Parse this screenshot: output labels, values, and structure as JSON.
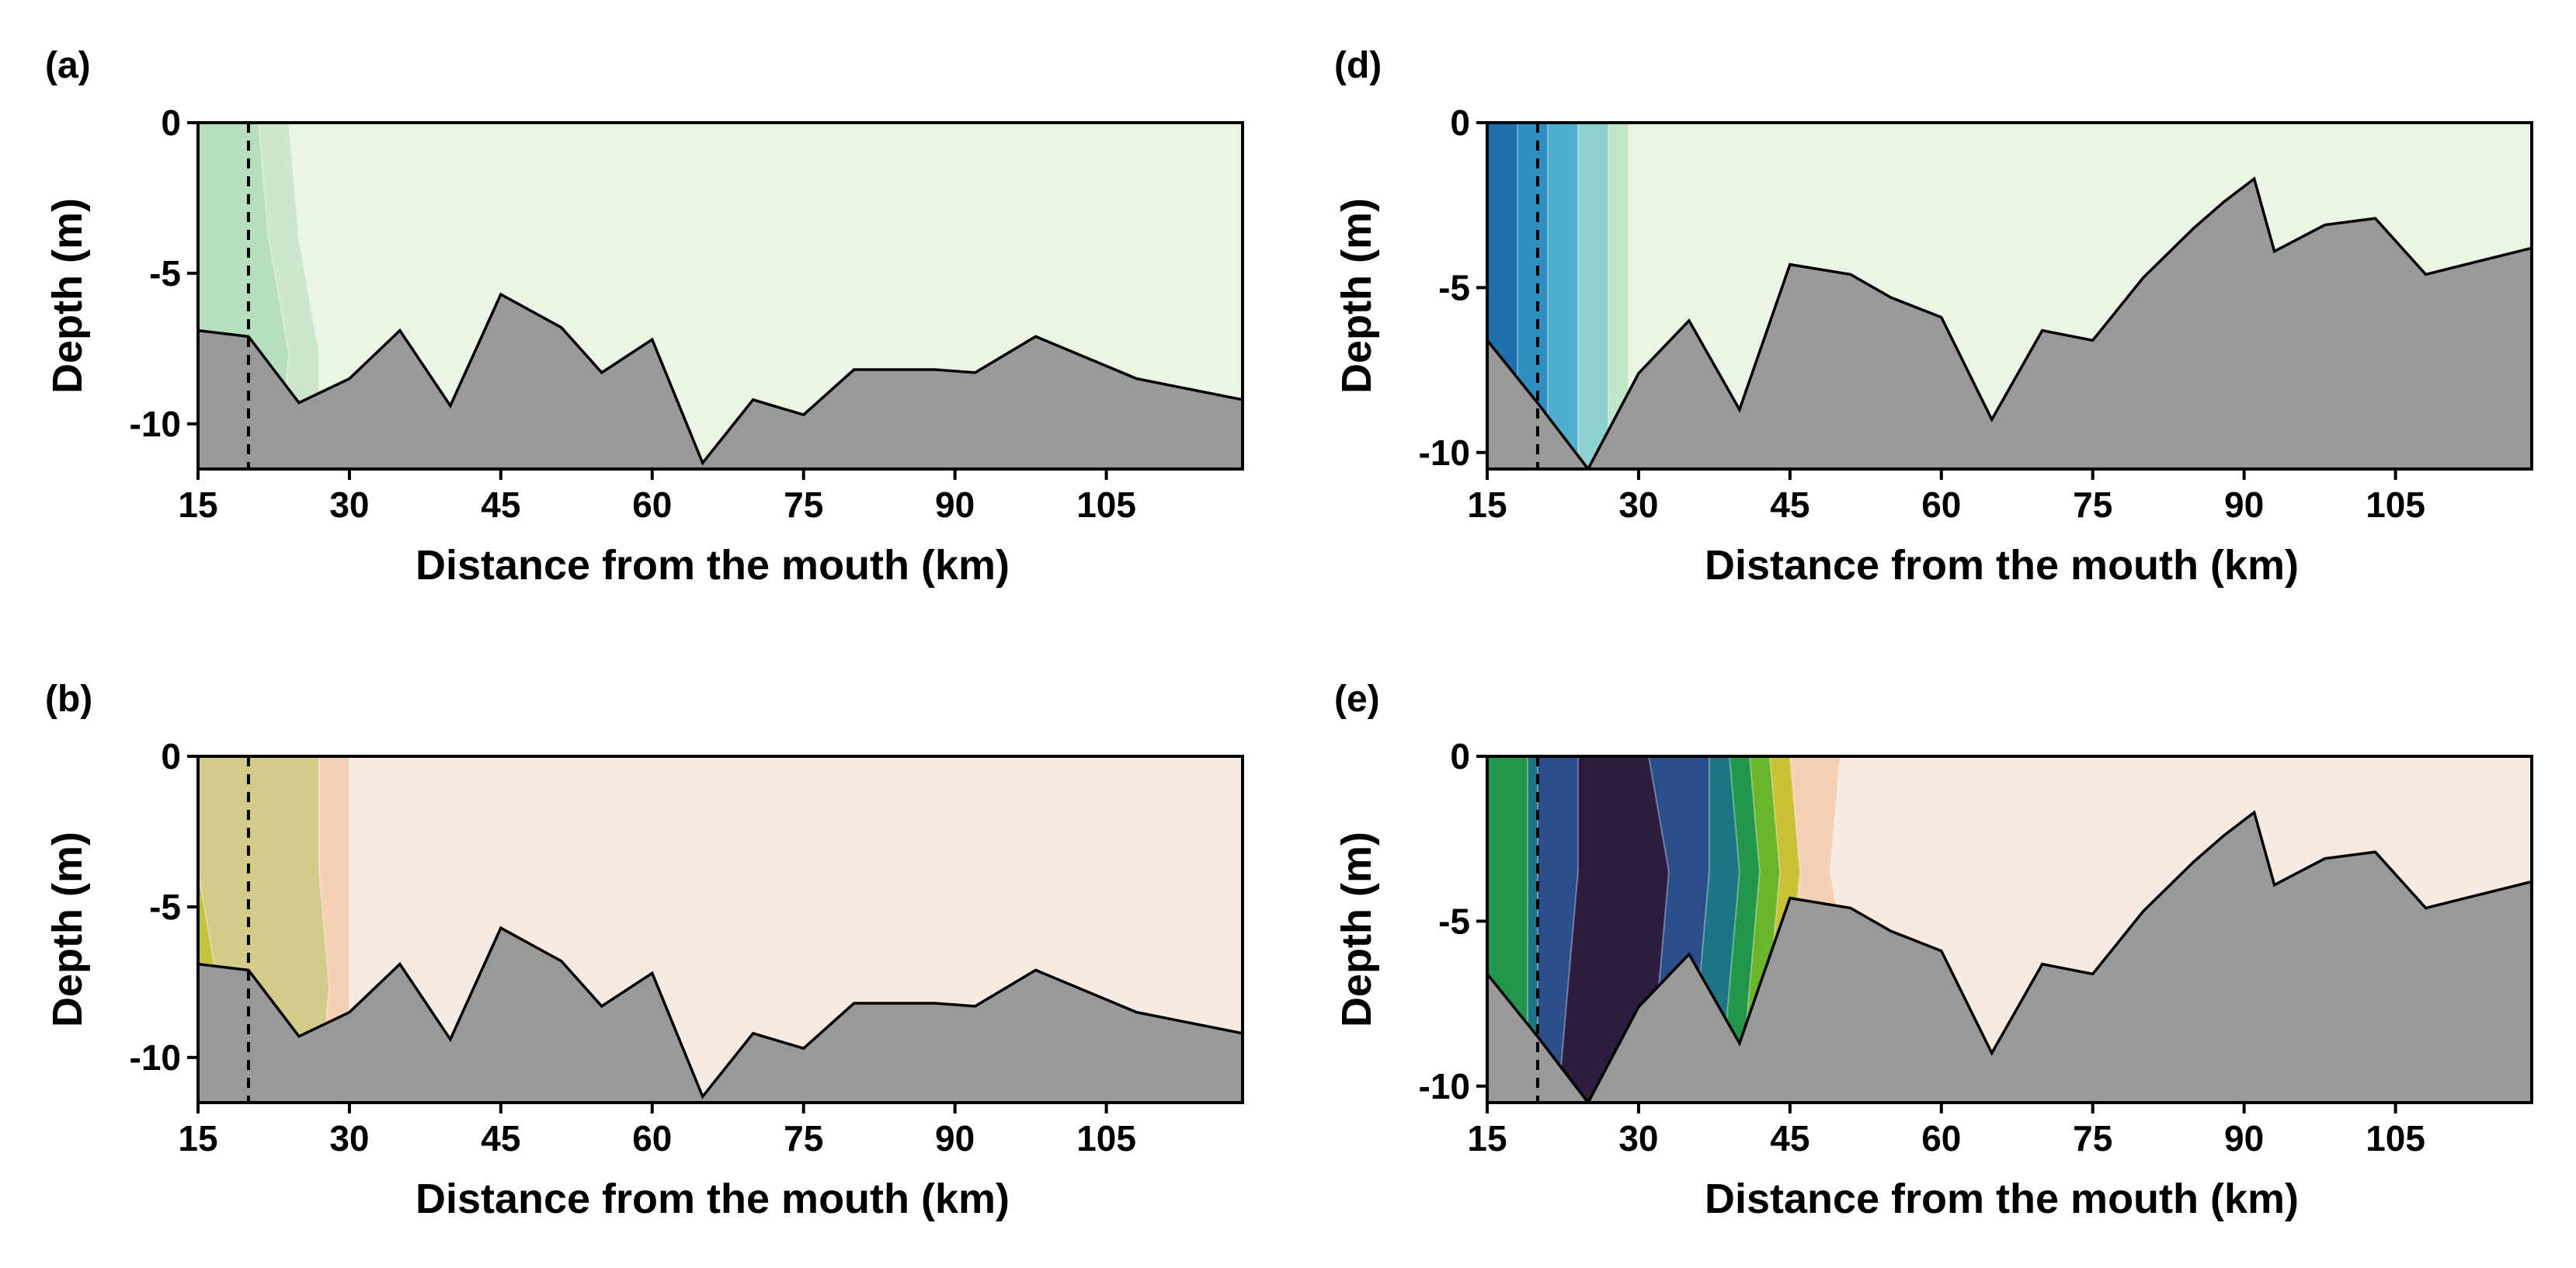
{
  "chart_data": [
    {
      "id": "a",
      "type": "heatmap",
      "panel_label": "(a)",
      "xlabel": "Distance from the mouth (km)",
      "ylabel": "Depth (m)",
      "xlim": [
        15,
        118.5
      ],
      "ylim": [
        -11.5,
        0
      ],
      "xticks": [
        "15",
        "30",
        "45",
        "60",
        "75",
        "90",
        "105"
      ],
      "yticks": [
        "0",
        "-5",
        "-10"
      ],
      "ytick_values": [
        0,
        -5,
        -10
      ],
      "xtick_values": [
        15,
        30,
        45,
        60,
        75,
        90,
        105
      ],
      "reference_line_x": 20,
      "background_color": "#eaf5e6",
      "bottom_color": "#999999",
      "bathymetry": {
        "x": [
          15,
          20,
          25,
          30,
          35,
          40,
          45,
          51,
          55,
          60,
          65,
          70,
          75,
          80,
          85,
          88,
          92,
          98,
          103,
          108,
          118.5
        ],
        "depth": [
          -6.9,
          -7.1,
          -9.3,
          -8.5,
          -6.9,
          -9.4,
          -5.7,
          -6.8,
          -8.3,
          -7.2,
          -11.3,
          -9.2,
          -9.7,
          -8.2,
          -8.2,
          -8.2,
          -8.3,
          -7.1,
          -7.8,
          -8.5,
          -9.2
        ]
      },
      "contours": [
        {
          "color": "#cbe7cc",
          "xs": [
            [
              15,
              24
            ],
            [
              15,
              25
            ],
            [
              15,
              27
            ],
            [
              15,
              27
            ]
          ]
        },
        {
          "color": "#b8dfbd",
          "xs": [
            [
              15,
              21
            ],
            [
              15,
              22
            ],
            [
              15,
              24
            ],
            [
              15,
              23
            ]
          ]
        }
      ]
    },
    {
      "id": "b",
      "type": "heatmap",
      "panel_label": "(b)",
      "xlabel": "Distance from the mouth (km)",
      "ylabel": "Depth (m)",
      "xlim": [
        15,
        118.5
      ],
      "ylim": [
        -11.5,
        0
      ],
      "xticks": [
        "15",
        "30",
        "45",
        "60",
        "75",
        "90",
        "105"
      ],
      "yticks": [
        "0",
        "-5",
        "-10"
      ],
      "ytick_values": [
        0,
        -5,
        -10
      ],
      "xtick_values": [
        15,
        30,
        45,
        60,
        75,
        90,
        105
      ],
      "reference_line_x": 20,
      "background_color": "#f6ebe3",
      "bottom_color": "#999999",
      "bathymetry": {
        "x": [
          15,
          20,
          25,
          30,
          35,
          40,
          45,
          51,
          55,
          60,
          65,
          70,
          75,
          80,
          85,
          88,
          92,
          98,
          103,
          108,
          118.5
        ],
        "depth": [
          -6.9,
          -7.1,
          -9.3,
          -8.5,
          -6.9,
          -9.4,
          -5.7,
          -6.8,
          -8.3,
          -7.2,
          -11.3,
          -9.2,
          -9.7,
          -8.2,
          -8.2,
          -8.2,
          -8.3,
          -7.1,
          -7.8,
          -8.5,
          -9.2
        ]
      },
      "contours": [
        {
          "color": "#f4d0b4",
          "xs": [
            [
              15,
              30
            ],
            [
              15,
              30
            ],
            [
              15,
              30
            ],
            [
              15,
              30
            ]
          ]
        },
        {
          "color": "#d4cb8a",
          "xs": [
            [
              15,
              27
            ],
            [
              15,
              27
            ],
            [
              15,
              28
            ],
            [
              15,
              27
            ]
          ]
        },
        {
          "color": "#c0c53c",
          "xs": [
            [
              15,
              15
            ],
            [
              15,
              15
            ],
            [
              15,
              17
            ],
            [
              15,
              27
            ]
          ]
        },
        {
          "color": "#84b81f",
          "xs": [
            [
              15,
              15
            ],
            [
              15,
              15
            ],
            [
              15,
              15
            ],
            [
              15,
              26
            ]
          ]
        },
        {
          "color": "#269a37",
          "xs": [
            [
              15,
              15
            ],
            [
              15,
              15
            ],
            [
              15,
              15
            ],
            [
              15,
              24
            ]
          ]
        }
      ]
    },
    {
      "id": "d",
      "type": "heatmap",
      "panel_label": "(d)",
      "xlabel": "Distance from the mouth (km)",
      "ylabel": "Depth (m)",
      "xlim": [
        15,
        118.5
      ],
      "ylim": [
        -10.5,
        0
      ],
      "xticks": [
        "15",
        "30",
        "45",
        "60",
        "75",
        "90",
        "105"
      ],
      "yticks": [
        "0",
        "-5",
        "-10"
      ],
      "ytick_values": [
        0,
        -5,
        -10
      ],
      "xtick_values": [
        15,
        30,
        45,
        60,
        75,
        90,
        105
      ],
      "reference_line_x": 20,
      "background_color": "#eaf5e6",
      "bottom_color": "#999999",
      "bathymetry": {
        "x": [
          15,
          20,
          25,
          30,
          35,
          40,
          45,
          51,
          55,
          60,
          65,
          70,
          75,
          80,
          85,
          88,
          91,
          93,
          98,
          103,
          108,
          118.5
        ],
        "depth": [
          -6.6,
          -8.5,
          -10.5,
          -7.6,
          -6.0,
          -8.7,
          -4.3,
          -4.6,
          -5.3,
          -5.9,
          -9.0,
          -6.3,
          -6.6,
          -4.7,
          -3.2,
          -2.4,
          -1.7,
          -3.9,
          -3.1,
          -2.9,
          -4.6,
          -3.8
        ]
      },
      "contours": [
        {
          "color": "#c4e6c8",
          "xs": [
            [
              15,
              29
            ],
            [
              15,
              29
            ],
            [
              15,
              29
            ],
            [
              15,
              29
            ]
          ]
        },
        {
          "color": "#8dd0cf",
          "xs": [
            [
              15,
              27
            ],
            [
              15,
              27
            ],
            [
              15,
              27
            ],
            [
              15,
              27
            ]
          ]
        },
        {
          "color": "#4fb0cd",
          "xs": [
            [
              15,
              24
            ],
            [
              15,
              24
            ],
            [
              15,
              24
            ],
            [
              15,
              24
            ]
          ]
        },
        {
          "color": "#2e8fc0",
          "xs": [
            [
              15,
              21
            ],
            [
              15,
              21
            ],
            [
              15,
              21
            ],
            [
              15,
              21
            ]
          ]
        },
        {
          "color": "#1f6fad",
          "xs": [
            [
              15,
              18
            ],
            [
              15,
              18
            ],
            [
              15,
              18
            ],
            [
              15,
              18
            ]
          ]
        }
      ]
    },
    {
      "id": "e",
      "type": "heatmap",
      "panel_label": "(e)",
      "xlabel": "Distance from the mouth (km)",
      "ylabel": "Depth (m)",
      "xlim": [
        15,
        118.5
      ],
      "ylim": [
        -10.5,
        0
      ],
      "xticks": [
        "15",
        "30",
        "45",
        "60",
        "75",
        "90",
        "105"
      ],
      "yticks": [
        "0",
        "-5",
        "-10"
      ],
      "ytick_values": [
        0,
        -5,
        -10
      ],
      "xtick_values": [
        15,
        30,
        45,
        60,
        75,
        90,
        105
      ],
      "reference_line_x": 20,
      "background_color": "#f6ebe3",
      "bottom_color": "#999999",
      "bathymetry": {
        "x": [
          15,
          20,
          25,
          30,
          35,
          40,
          45,
          51,
          55,
          60,
          65,
          70,
          75,
          80,
          85,
          88,
          91,
          93,
          98,
          103,
          108,
          118.5
        ],
        "depth": [
          -6.6,
          -8.5,
          -10.5,
          -7.6,
          -6.0,
          -8.7,
          -4.3,
          -4.6,
          -5.3,
          -5.9,
          -9.0,
          -6.3,
          -6.6,
          -4.7,
          -3.2,
          -2.4,
          -1.7,
          -3.9,
          -3.1,
          -2.9,
          -4.6,
          -3.8
        ]
      },
      "contours": [
        {
          "color": "#f4d0b4",
          "xs": [
            [
              15,
              50
            ],
            [
              15,
              49
            ],
            [
              15,
              51
            ],
            [
              15,
              56
            ]
          ]
        },
        {
          "color": "#c9c236",
          "xs": [
            [
              15,
              45
            ],
            [
              15,
              46
            ],
            [
              15,
              45
            ],
            [
              15,
              43
            ]
          ]
        },
        {
          "color": "#6bb52b",
          "xs": [
            [
              15,
              43
            ],
            [
              15,
              44
            ],
            [
              15,
              43
            ],
            [
              15,
              42
            ]
          ]
        },
        {
          "color": "#22964a",
          "xs": [
            [
              15,
              41
            ],
            [
              15,
              42
            ],
            [
              15,
              41
            ],
            [
              15,
              40
            ]
          ]
        },
        {
          "color": "#1b7582",
          "xs": [
            [
              19,
              39
            ],
            [
              19,
              40
            ],
            [
              19,
              39
            ],
            [
              19,
              38
            ]
          ]
        },
        {
          "color": "#2a4e8c",
          "xs": [
            [
              20,
              37
            ],
            [
              20,
              37
            ],
            [
              20,
              36
            ],
            [
              20,
              35
            ]
          ]
        },
        {
          "color": "#2c1d3f",
          "xs": [
            [
              24,
              31
            ],
            [
              24,
              33
            ],
            [
              23,
              32
            ],
            [
              22,
              30
            ]
          ]
        }
      ]
    }
  ]
}
